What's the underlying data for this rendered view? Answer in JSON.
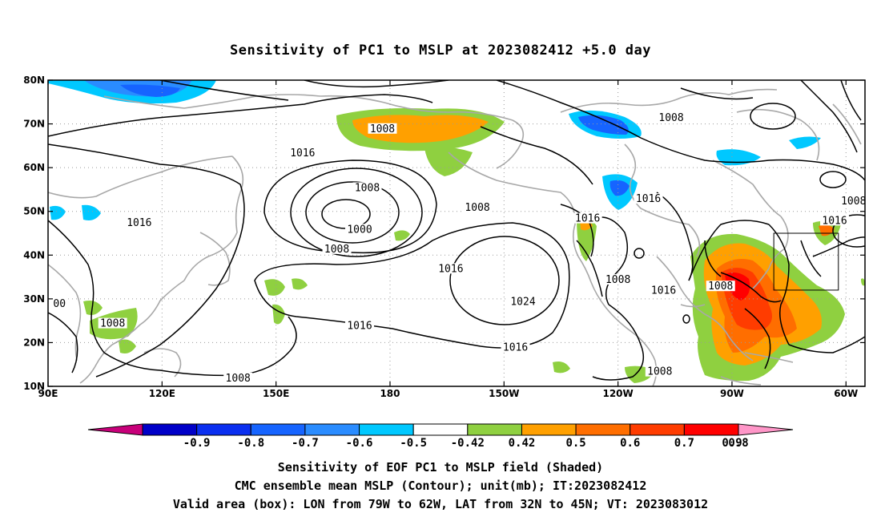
{
  "title": "Sensitivity of PC1 to MSLP at 2023082412 +5.0 day",
  "map": {
    "lon_range": [
      90,
      305
    ],
    "lat_range": [
      10,
      80
    ],
    "lon_ticks": [
      {
        "value": 90,
        "label": "90E"
      },
      {
        "value": 120,
        "label": "120E"
      },
      {
        "value": 150,
        "label": "150E"
      },
      {
        "value": 180,
        "label": "180"
      },
      {
        "value": 210,
        "label": "150W"
      },
      {
        "value": 240,
        "label": "120W"
      },
      {
        "value": 270,
        "label": "90W"
      },
      {
        "value": 300,
        "label": "60W"
      }
    ],
    "lat_ticks": [
      {
        "value": 10,
        "label": "10N"
      },
      {
        "value": 20,
        "label": "20N"
      },
      {
        "value": 30,
        "label": "30N"
      },
      {
        "value": 40,
        "label": "40N"
      },
      {
        "value": 50,
        "label": "50N"
      },
      {
        "value": 60,
        "label": "60N"
      },
      {
        "value": 70,
        "label": "70N"
      },
      {
        "value": 80,
        "label": "80N"
      }
    ],
    "grid": "dotted",
    "contour_labels": [
      {
        "text": "1008",
        "lon": 178,
        "lat": 68.5
      },
      {
        "text": "1016",
        "lon": 157,
        "lat": 63
      },
      {
        "text": "1008",
        "lon": 174,
        "lat": 55
      },
      {
        "text": "1008",
        "lon": 203,
        "lat": 50.5
      },
      {
        "text": "1000",
        "lon": 172,
        "lat": 45.5
      },
      {
        "text": "1008",
        "lon": 166,
        "lat": 41
      },
      {
        "text": "1016",
        "lon": 114,
        "lat": 47
      },
      {
        "text": "1016",
        "lon": 196,
        "lat": 36.5
      },
      {
        "text": "1024",
        "lon": 215,
        "lat": 29
      },
      {
        "text": "1016",
        "lon": 172,
        "lat": 23.5
      },
      {
        "text": "1016",
        "lon": 213,
        "lat": 18.5
      },
      {
        "text": "1008",
        "lon": 107,
        "lat": 24
      },
      {
        "text": "00",
        "lon": 93,
        "lat": 28.5
      },
      {
        "text": "1008",
        "lon": 140,
        "lat": 11.5
      },
      {
        "text": "1008",
        "lon": 254,
        "lat": 71
      },
      {
        "text": "1016",
        "lon": 248,
        "lat": 52.5
      },
      {
        "text": "1016",
        "lon": 232,
        "lat": 48
      },
      {
        "text": "1008",
        "lon": 240,
        "lat": 34
      },
      {
        "text": "1016",
        "lon": 252,
        "lat": 31.5
      },
      {
        "text": "1008",
        "lon": 267,
        "lat": 32.5
      },
      {
        "text": "1008",
        "lon": 251,
        "lat": 13
      },
      {
        "text": "1008",
        "lon": 302,
        "lat": 52
      },
      {
        "text": "1016",
        "lon": 297,
        "lat": 47.5
      }
    ],
    "valid_box": {
      "lon_min": 281,
      "lon_max": 298,
      "lat_min": 32,
      "lat_max": 45
    }
  },
  "colorbar": {
    "labels": [
      "-0.9",
      "-0.8",
      "-0.7",
      "-0.6",
      "-0.5",
      "-0.42",
      "0.42",
      "0.5",
      "0.6",
      "0.7",
      "0.8",
      "0.9"
    ],
    "colors": [
      "#0000c8",
      "#0a2ff0",
      "#1664ff",
      "#2a8cff",
      "#00c8ff",
      "#ffffff",
      "#8fd040",
      "#ffa000",
      "#ff6e00",
      "#ff3c00",
      "#ff0000"
    ],
    "low_color": "#c8007a",
    "high_color": "#ff96c8"
  },
  "footer": {
    "line1": "Sensitivity of EOF PC1 to MSLP field (Shaded)",
    "line2": "CMC ensemble mean MSLP (Contour); unit(mb); IT:2023082412",
    "line3": "Valid area (box): LON from 79W to 62W, LAT from 32N to 45N; VT: 2023083012"
  }
}
